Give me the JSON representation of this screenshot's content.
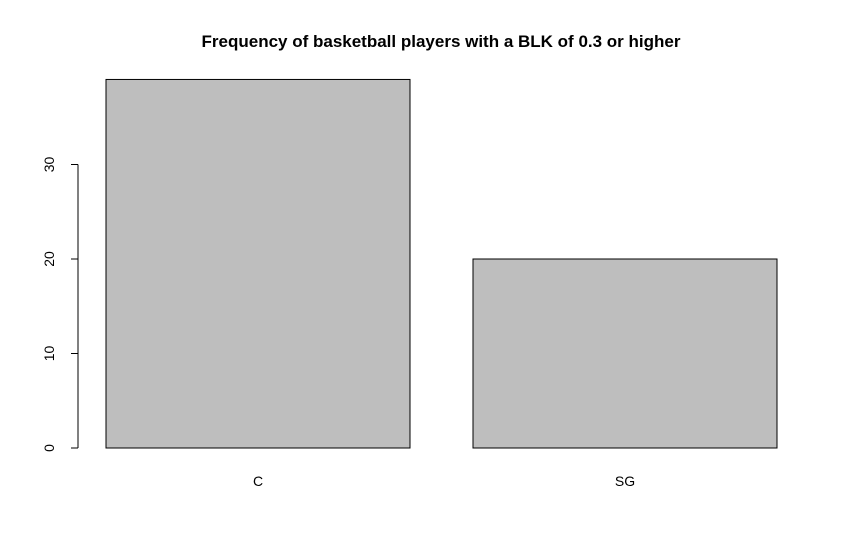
{
  "chart_data": {
    "type": "bar",
    "title": "Frequency of basketball players with a BLK of 0.3 or higher",
    "xlabel": "",
    "ylabel": "",
    "categories": [
      "C",
      "SG"
    ],
    "values": [
      39,
      20
    ],
    "yticks": [
      0,
      10,
      20,
      30
    ],
    "ylim": [
      0,
      39
    ],
    "grid": false,
    "bar_color": "#bebebe"
  }
}
